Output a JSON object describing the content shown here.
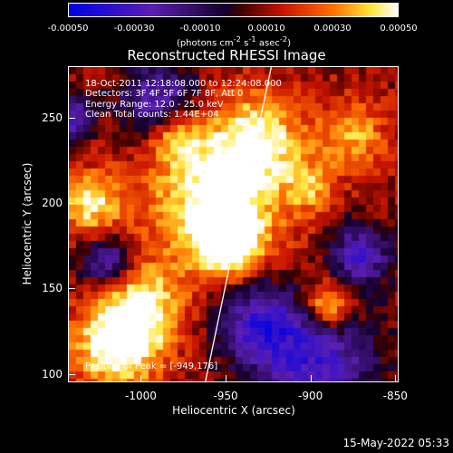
{
  "chart_data": {
    "type": "heatmap",
    "title": "Reconstructed RHESSI Image",
    "xlabel": "Heliocentric X (arcsec)",
    "ylabel": "Heliocentric Y (arcsec)",
    "xlim": [
      -1043,
      -848
    ],
    "ylim": [
      95,
      280
    ],
    "xticks": [
      "-1000",
      "-950",
      "-900",
      "-850"
    ],
    "xtick_values": [
      -1000,
      -950,
      -900,
      -850
    ],
    "yticks": [
      "250",
      "200",
      "150",
      "100"
    ],
    "ytick_values": [
      250,
      200,
      150,
      100
    ],
    "colorbar": {
      "ticks": [
        "-0.00050",
        "-0.00030",
        "-0.00010",
        "0.00010",
        "0.00030",
        "0.00050"
      ],
      "range": [
        -0.0005,
        0.0005
      ],
      "units_text": "(photons cm",
      "units_exp1": "-2",
      "units_mid1": " s",
      "units_exp2": "-1",
      "units_mid2": " asec",
      "units_exp3": "-2",
      "units_end": ")"
    },
    "info_lines": [
      "18-Oct-2011 12:18:08.000 to 12:24:08.000",
      "Detectors: 3F 4F 5F 6F 7F 8F, Att 0",
      "Energy Range: 12.0 - 25.0 keV",
      "Clean     Total counts: 1.44E+04"
    ],
    "peak_label": "Position of Peak = [-949,176]",
    "peak": [
      -949,
      176
    ],
    "limb_line": {
      "x": [
        -962,
        -923
      ],
      "y": [
        95,
        280
      ]
    }
  },
  "timestamp": "15-May-2022 05:33",
  "colors": {
    "background": "#000000",
    "text": "#ffffff"
  }
}
